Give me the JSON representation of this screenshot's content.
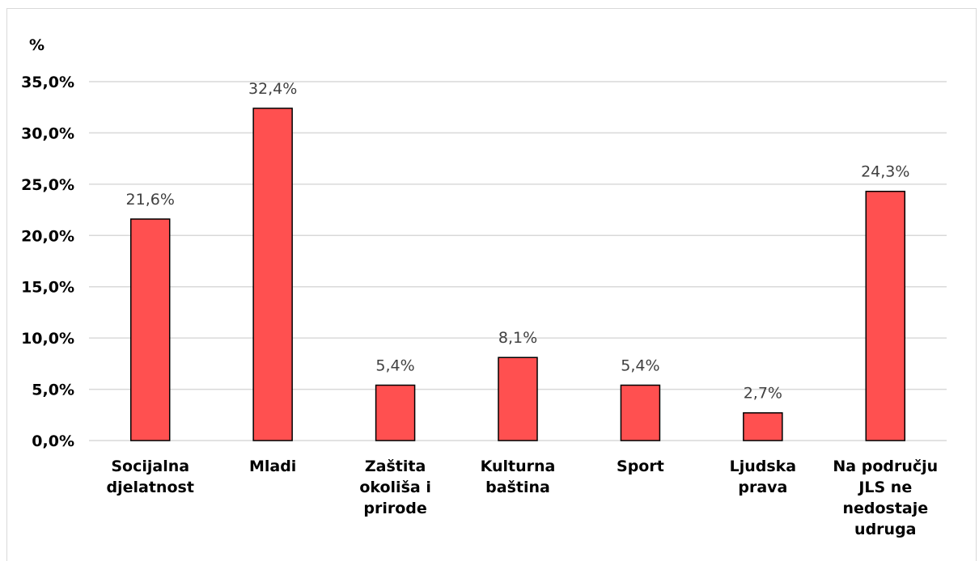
{
  "chart_data": {
    "type": "bar",
    "ylabel": "%",
    "ylim": [
      0,
      35
    ],
    "yticks": [
      "0,0%",
      "5,0%",
      "10,0%",
      "15,0%",
      "20,0%",
      "25,0%",
      "30,0%",
      "35,0%"
    ],
    "grid": true,
    "categories": [
      [
        "Socijalna",
        "djelatnost"
      ],
      [
        "Mladi"
      ],
      [
        "Zaštita",
        "okoliša i",
        "prirode"
      ],
      [
        "Kulturna",
        "baština"
      ],
      [
        "Sport"
      ],
      [
        "Ljudska",
        "prava"
      ],
      [
        "Na području",
        "JLS ne",
        "nedostaje",
        "udruga"
      ]
    ],
    "values": [
      21.6,
      32.4,
      5.4,
      8.1,
      5.4,
      2.7,
      24.3
    ],
    "data_labels": [
      "21,6%",
      "32,4%",
      "5,4%",
      "8,1%",
      "5,4%",
      "2,7%",
      "24,3%"
    ],
    "colors": {
      "bar_fill": "#ff5050",
      "bar_stroke": "#000000",
      "grid": "#d9d9d9"
    }
  }
}
